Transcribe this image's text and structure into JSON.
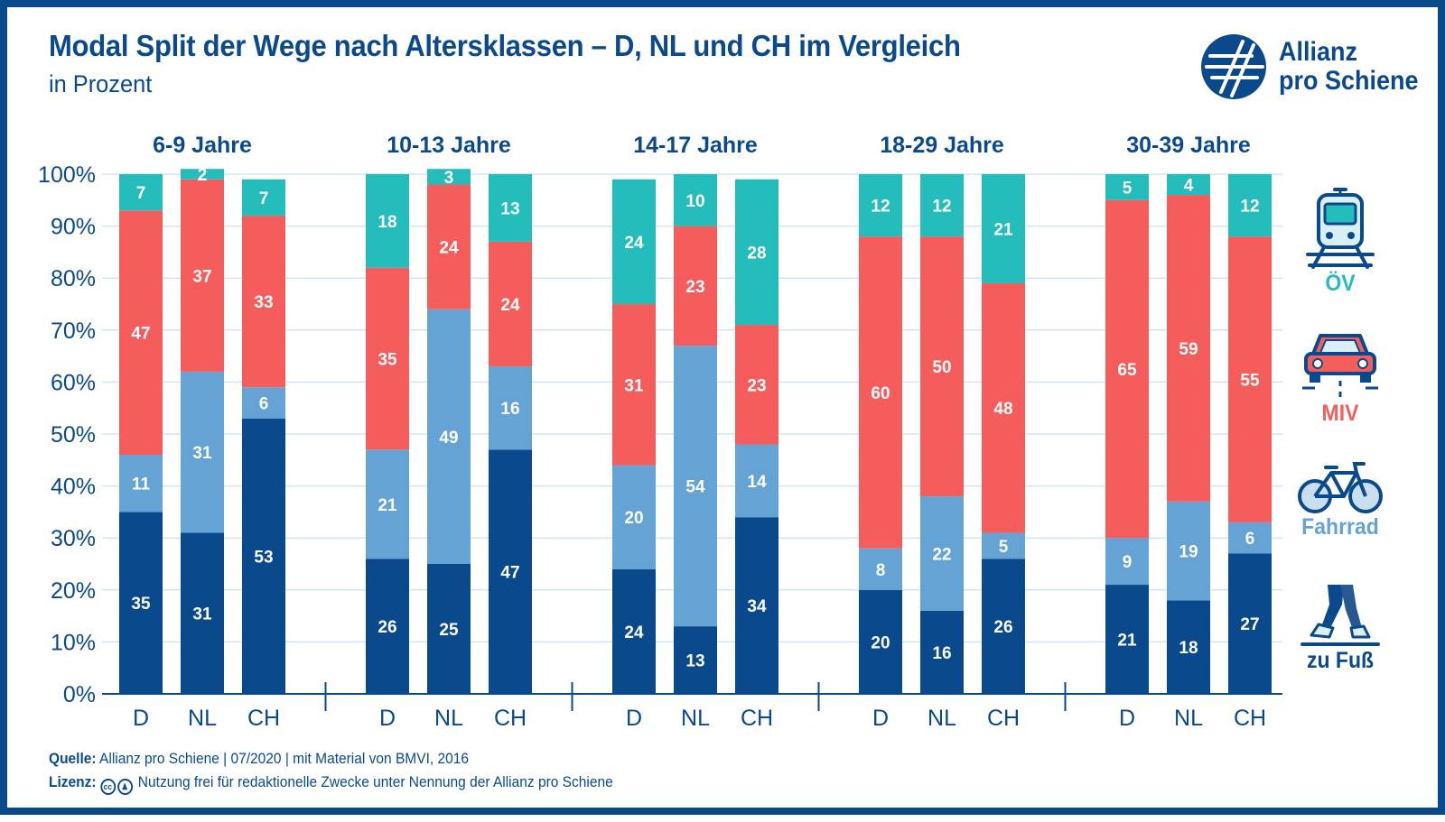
{
  "header": {
    "title": "Modal Split der Wege nach Altersklassen – D, NL und CH im Vergleich",
    "subtitle": "in Prozent"
  },
  "logo": {
    "line1": "Allianz",
    "line2": "pro Schiene"
  },
  "colors": {
    "fuss": "#0a4a8c",
    "fahrrad": "#64a3d3",
    "miv": "#f55d5d",
    "oev": "#25bcbc",
    "brand": "#0a4a8c"
  },
  "legend": [
    {
      "key": "oev",
      "label": "ÖV",
      "icon": "train-icon"
    },
    {
      "key": "miv",
      "label": "MIV",
      "icon": "car-icon"
    },
    {
      "key": "fahrrad",
      "label": "Fahrrad",
      "icon": "bicycle-icon"
    },
    {
      "key": "fuss",
      "label": "zu Fuß",
      "icon": "walking-legs-icon"
    }
  ],
  "chart_data": {
    "type": "stacked_bar",
    "title": "Modal Split der Wege nach Altersklassen – D, NL und CH im Vergleich",
    "subtitle": "in Prozent",
    "y_ticks": [
      "0%",
      "10%",
      "20%",
      "30%",
      "40%",
      "50%",
      "60%",
      "70%",
      "80%",
      "90%",
      "100%"
    ],
    "ylim": [
      0,
      100
    ],
    "grid": true,
    "legend_position": "right",
    "series_order": [
      "zu Fuß",
      "Fahrrad",
      "MIV",
      "ÖV"
    ],
    "groups": [
      {
        "label": "6-9 Jahre",
        "bars": [
          {
            "country": "D",
            "values": [
              35,
              11,
              47,
              7
            ]
          },
          {
            "country": "NL",
            "values": [
              31,
              31,
              37,
              2
            ]
          },
          {
            "country": "CH",
            "values": [
              53,
              6,
              33,
              7
            ]
          }
        ]
      },
      {
        "label": "10-13 Jahre",
        "bars": [
          {
            "country": "D",
            "values": [
              26,
              21,
              35,
              18
            ]
          },
          {
            "country": "NL",
            "values": [
              25,
              49,
              24,
              3
            ]
          },
          {
            "country": "CH",
            "values": [
              47,
              16,
              24,
              13
            ]
          }
        ]
      },
      {
        "label": "14-17 Jahre",
        "bars": [
          {
            "country": "D",
            "values": [
              24,
              20,
              31,
              24
            ]
          },
          {
            "country": "NL",
            "values": [
              13,
              54,
              23,
              10
            ]
          },
          {
            "country": "CH",
            "values": [
              34,
              14,
              23,
              28
            ]
          }
        ]
      },
      {
        "label": "18-29 Jahre",
        "bars": [
          {
            "country": "D",
            "values": [
              20,
              8,
              60,
              12
            ]
          },
          {
            "country": "NL",
            "values": [
              16,
              22,
              50,
              12
            ]
          },
          {
            "country": "CH",
            "values": [
              26,
              5,
              48,
              21
            ]
          }
        ]
      },
      {
        "label": "30-39 Jahre",
        "bars": [
          {
            "country": "D",
            "values": [
              21,
              9,
              65,
              5
            ]
          },
          {
            "country": "NL",
            "values": [
              18,
              19,
              59,
              4
            ]
          },
          {
            "country": "CH",
            "values": [
              27,
              6,
              55,
              12
            ]
          }
        ]
      }
    ]
  },
  "footer": {
    "source_label": "Quelle:",
    "source_text": "Allianz pro Schiene | 07/2020 | mit Material von BMVI, 2016",
    "license_label": "Lizenz:",
    "license_cc": "cc",
    "license_text": "Nutzung frei für redaktionelle Zwecke unter Nennung der Allianz pro Schiene"
  }
}
